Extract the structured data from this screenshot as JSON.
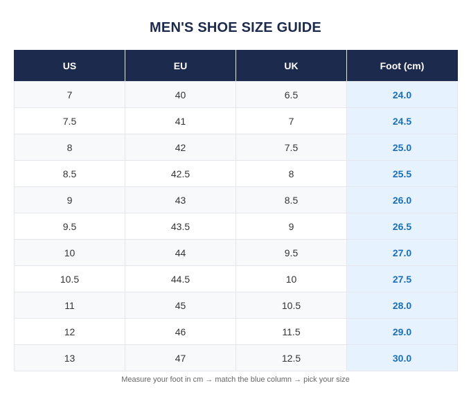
{
  "title": "MEN'S SHOE SIZE GUIDE",
  "table": {
    "headers": [
      "US",
      "EU",
      "UK",
      "Foot (cm)"
    ],
    "rows": [
      [
        "7",
        "40",
        "6.5",
        "24.0"
      ],
      [
        "7.5",
        "41",
        "7",
        "24.5"
      ],
      [
        "8",
        "42",
        "7.5",
        "25.0"
      ],
      [
        "8.5",
        "42.5",
        "8",
        "25.5"
      ],
      [
        "9",
        "43",
        "8.5",
        "26.0"
      ],
      [
        "9.5",
        "43.5",
        "9",
        "26.5"
      ],
      [
        "10",
        "44",
        "9.5",
        "27.0"
      ],
      [
        "10.5",
        "44.5",
        "10",
        "27.5"
      ],
      [
        "11",
        "45",
        "10.5",
        "28.0"
      ],
      [
        "12",
        "46",
        "11.5",
        "29.0"
      ],
      [
        "13",
        "47",
        "12.5",
        "30.0"
      ]
    ]
  },
  "footnote": "Measure your foot in cm → match the blue column → pick your size",
  "colors": {
    "header_bg": "#1c2a4d",
    "accent_column_bg": "#e6f2fd",
    "accent_column_text": "#1a6fb8"
  }
}
